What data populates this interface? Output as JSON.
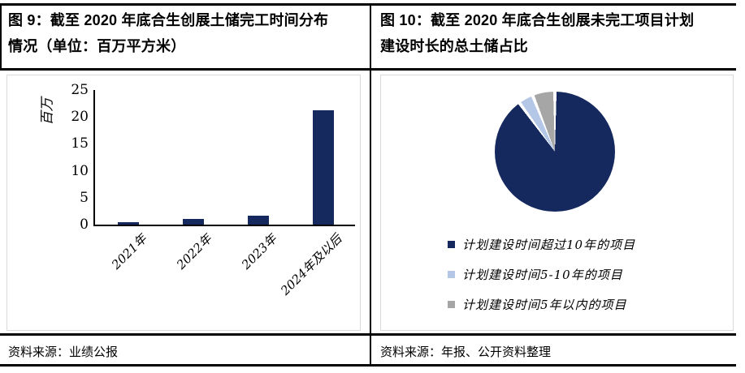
{
  "page": {
    "left": {
      "title_lines": [
        "图 9：截至 2020 年底合生创展土储完工时间分布",
        "情况（单位：百万平方米）"
      ],
      "source": "资料来源：业绩公报"
    },
    "right": {
      "title_lines": [
        "图 10：截至 2020 年底合生创展未完工项目计划",
        "建设时长的总土储占比"
      ],
      "source": "资料来源：年报、公开资料整理"
    }
  },
  "colors": {
    "navy": "#16295f",
    "light_blue": "#b4c7e7",
    "gray": "#a6a6a6",
    "rule_black": "#000000",
    "box_border": "#d9d9d9"
  },
  "chart_data": [
    {
      "type": "bar",
      "panel": "图 9",
      "title": "截至 2020 年底合生创展土储完工时间分布情况（单位：百万平方米）",
      "ylabel": "百万",
      "xlabel": "",
      "categories": [
        "2021年",
        "2022年",
        "2023年",
        "2024年及以后"
      ],
      "values": [
        0.5,
        1.1,
        1.7,
        21.2
      ],
      "ylim": [
        0,
        25
      ],
      "yticks": [
        0,
        5,
        10,
        15,
        20,
        25
      ],
      "grid": false,
      "bar_color": "#16295f"
    },
    {
      "type": "pie",
      "panel": "图 10",
      "title": "截至 2020 年底合生创展未完工项目计划建设时长的总土储占比",
      "slices": [
        {
          "label": "计划建设时间超过10年的项目",
          "value": 90,
          "color": "#16295f"
        },
        {
          "label": "计划建设时间5-10年的项目",
          "value": 4,
          "color": "#b4c7e7"
        },
        {
          "label": "计划建设时间5年以内的项目",
          "value": 6,
          "color": "#a6a6a6"
        }
      ],
      "start_angle_deg": 0,
      "legend_position": "below"
    }
  ]
}
